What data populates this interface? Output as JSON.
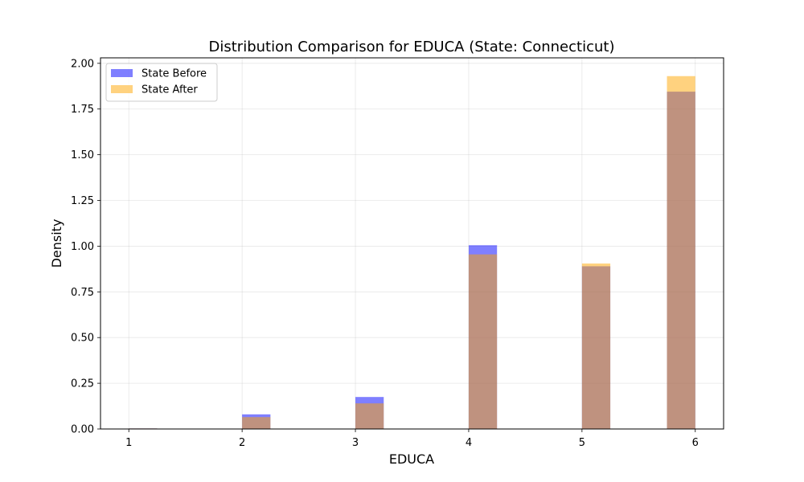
{
  "chart_data": {
    "type": "bar",
    "title": "Distribution Comparison for EDUCA (State: Connecticut)",
    "xlabel": "EDUCA",
    "ylabel": "Density",
    "xlim": [
      0.75,
      6.25
    ],
    "ylim": [
      0,
      2.03
    ],
    "x_ticks": [
      "1",
      "2",
      "3",
      "4",
      "5",
      "6"
    ],
    "y_ticks": [
      "0.00",
      "0.25",
      "0.50",
      "0.75",
      "1.00",
      "1.25",
      "1.50",
      "1.75",
      "2.00"
    ],
    "bin_width": 0.25,
    "grid": true,
    "legend_position": "top-left",
    "series": [
      {
        "name": "State Before",
        "color": "#0000ff",
        "opacity": 0.5,
        "bins": [
          {
            "start": 1.0,
            "value": 0.003
          },
          {
            "start": 2.0,
            "value": 0.08
          },
          {
            "start": 3.0,
            "value": 0.175
          },
          {
            "start": 4.0,
            "value": 1.005
          },
          {
            "start": 5.0,
            "value": 0.89
          },
          {
            "start": 5.75,
            "value": 1.845
          }
        ]
      },
      {
        "name": "State After",
        "color": "#ffa500",
        "opacity": 0.5,
        "bins": [
          {
            "start": 1.0,
            "value": 0.003
          },
          {
            "start": 2.0,
            "value": 0.065
          },
          {
            "start": 3.0,
            "value": 0.14
          },
          {
            "start": 4.0,
            "value": 0.955
          },
          {
            "start": 5.0,
            "value": 0.905
          },
          {
            "start": 5.75,
            "value": 1.93
          }
        ]
      }
    ]
  }
}
